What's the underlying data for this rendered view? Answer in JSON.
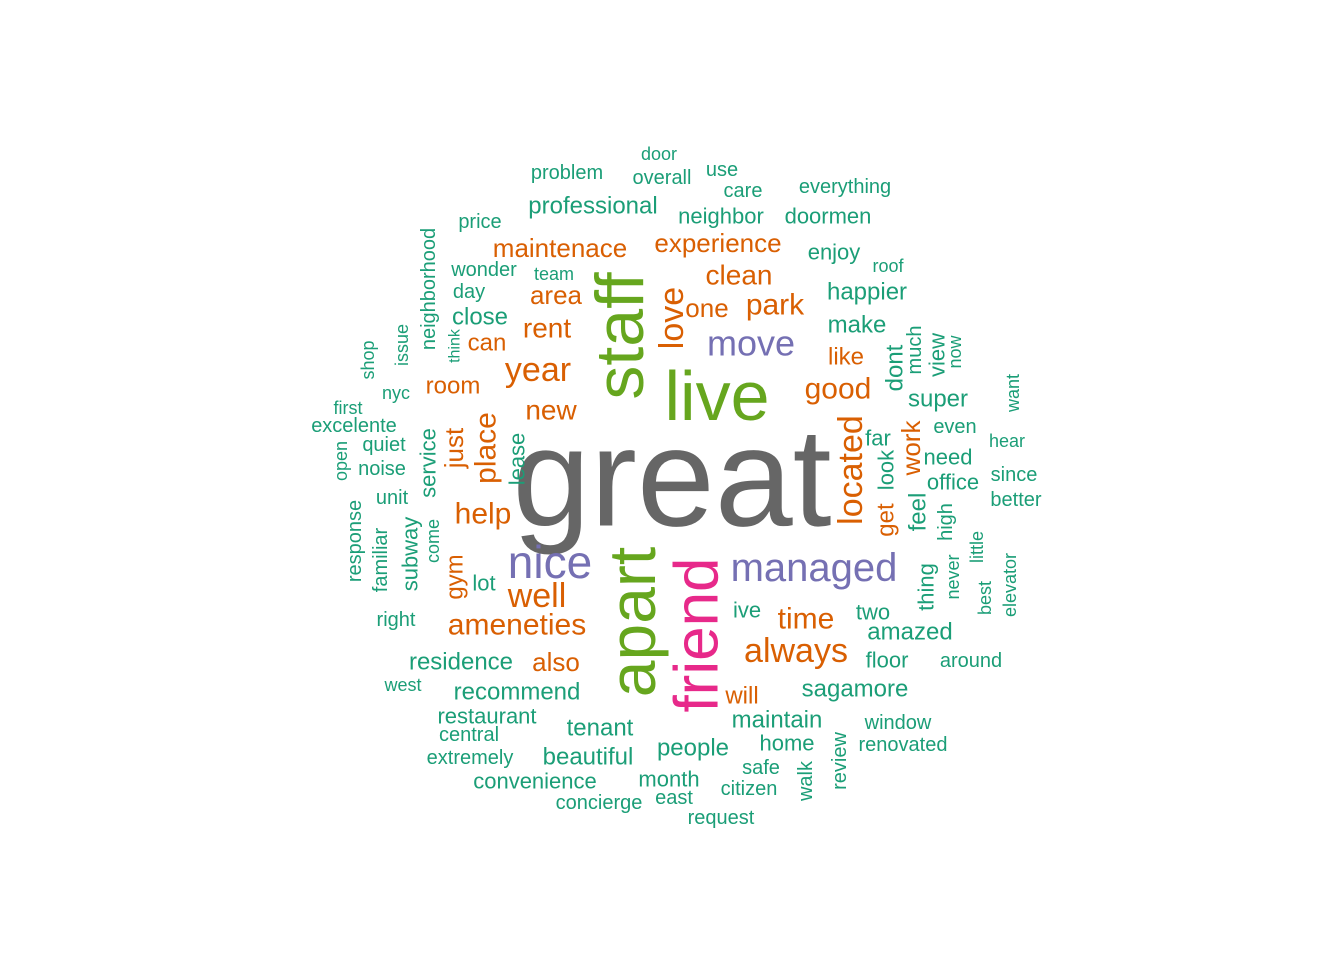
{
  "colors": {
    "teal": "#1B9E77",
    "orange": "#D95F02",
    "purple": "#7570B3",
    "pink": "#E7298A",
    "green": "#66A61E",
    "gray": "#666666"
  },
  "words": [
    {
      "text": "great",
      "color": "gray"
    },
    {
      "text": "live",
      "color": "green"
    },
    {
      "text": "staff",
      "color": "green"
    },
    {
      "text": "apart",
      "color": "green"
    },
    {
      "text": "friend",
      "color": "pink"
    },
    {
      "text": "nice",
      "color": "purple"
    },
    {
      "text": "managed",
      "color": "purple"
    },
    {
      "text": "move",
      "color": "purple"
    },
    {
      "text": "love",
      "color": "orange"
    },
    {
      "text": "year",
      "color": "orange"
    },
    {
      "text": "always",
      "color": "orange"
    },
    {
      "text": "well",
      "color": "orange"
    },
    {
      "text": "located",
      "color": "orange"
    },
    {
      "text": "ameneties",
      "color": "orange"
    },
    {
      "text": "place",
      "color": "orange"
    },
    {
      "text": "time",
      "color": "orange"
    },
    {
      "text": "help",
      "color": "orange"
    },
    {
      "text": "good",
      "color": "orange"
    },
    {
      "text": "park",
      "color": "orange"
    },
    {
      "text": "clean",
      "color": "orange"
    },
    {
      "text": "new",
      "color": "orange"
    },
    {
      "text": "experience",
      "color": "orange"
    },
    {
      "text": "maintenace",
      "color": "orange"
    },
    {
      "text": "rent",
      "color": "orange"
    },
    {
      "text": "area",
      "color": "orange"
    },
    {
      "text": "one",
      "color": "orange"
    },
    {
      "text": "also",
      "color": "orange"
    },
    {
      "text": "just",
      "color": "orange"
    },
    {
      "text": "work",
      "color": "orange"
    },
    {
      "text": "like",
      "color": "orange"
    },
    {
      "text": "can",
      "color": "orange"
    },
    {
      "text": "room",
      "color": "orange"
    },
    {
      "text": "gym",
      "color": "orange"
    },
    {
      "text": "get",
      "color": "orange"
    },
    {
      "text": "will",
      "color": "orange"
    },
    {
      "text": "sagamore",
      "color": "teal"
    },
    {
      "text": "recommend",
      "color": "teal"
    },
    {
      "text": "maintain",
      "color": "teal"
    },
    {
      "text": "amazed",
      "color": "teal"
    },
    {
      "text": "professional",
      "color": "teal"
    },
    {
      "text": "neighbor",
      "color": "teal"
    },
    {
      "text": "doormen",
      "color": "teal"
    },
    {
      "text": "happier",
      "color": "teal"
    },
    {
      "text": "make",
      "color": "teal"
    },
    {
      "text": "residence",
      "color": "teal"
    },
    {
      "text": "beautiful",
      "color": "teal"
    },
    {
      "text": "people",
      "color": "teal"
    },
    {
      "text": "tenant",
      "color": "teal"
    },
    {
      "text": "super",
      "color": "teal"
    },
    {
      "text": "enjoy",
      "color": "teal"
    },
    {
      "text": "home",
      "color": "teal"
    },
    {
      "text": "lot",
      "color": "teal"
    },
    {
      "text": "two",
      "color": "teal"
    },
    {
      "text": "ive",
      "color": "teal"
    },
    {
      "text": "floor",
      "color": "teal"
    },
    {
      "text": "close",
      "color": "teal"
    },
    {
      "text": "feel",
      "color": "teal"
    },
    {
      "text": "dont",
      "color": "teal"
    },
    {
      "text": "far",
      "color": "teal"
    },
    {
      "text": "look",
      "color": "teal"
    },
    {
      "text": "need",
      "color": "teal"
    },
    {
      "text": "office",
      "color": "teal"
    },
    {
      "text": "thing",
      "color": "teal"
    },
    {
      "text": "service",
      "color": "teal"
    },
    {
      "text": "subway",
      "color": "teal"
    },
    {
      "text": "lease",
      "color": "teal"
    },
    {
      "text": "much",
      "color": "teal"
    },
    {
      "text": "view",
      "color": "teal"
    },
    {
      "text": "high",
      "color": "teal"
    },
    {
      "text": "restaurant",
      "color": "teal"
    },
    {
      "text": "convenience",
      "color": "teal"
    },
    {
      "text": "concierge",
      "color": "teal"
    },
    {
      "text": "month",
      "color": "teal"
    },
    {
      "text": "citizen",
      "color": "teal"
    },
    {
      "text": "request",
      "color": "teal"
    },
    {
      "text": "safe",
      "color": "teal"
    },
    {
      "text": "east",
      "color": "teal"
    },
    {
      "text": "walk",
      "color": "teal"
    },
    {
      "text": "review",
      "color": "teal"
    },
    {
      "text": "window",
      "color": "teal"
    },
    {
      "text": "renovated",
      "color": "teal"
    },
    {
      "text": "around",
      "color": "teal"
    },
    {
      "text": "extremely",
      "color": "teal"
    },
    {
      "text": "central",
      "color": "teal"
    },
    {
      "text": "west",
      "color": "teal"
    },
    {
      "text": "right",
      "color": "teal"
    },
    {
      "text": "familiar",
      "color": "teal"
    },
    {
      "text": "response",
      "color": "teal"
    },
    {
      "text": "come",
      "color": "teal"
    },
    {
      "text": "unit",
      "color": "teal"
    },
    {
      "text": "noise",
      "color": "teal"
    },
    {
      "text": "quiet",
      "color": "teal"
    },
    {
      "text": "open",
      "color": "teal"
    },
    {
      "text": "excelente",
      "color": "teal"
    },
    {
      "text": "first",
      "color": "teal"
    },
    {
      "text": "nyc",
      "color": "teal"
    },
    {
      "text": "shop",
      "color": "teal"
    },
    {
      "text": "issue",
      "color": "teal"
    },
    {
      "text": "think",
      "color": "teal"
    },
    {
      "text": "neighborhood",
      "color": "teal"
    },
    {
      "text": "day",
      "color": "teal"
    },
    {
      "text": "wonder",
      "color": "teal"
    },
    {
      "text": "team",
      "color": "teal"
    },
    {
      "text": "price",
      "color": "teal"
    },
    {
      "text": "problem",
      "color": "teal"
    },
    {
      "text": "door",
      "color": "teal"
    },
    {
      "text": "overall",
      "color": "teal"
    },
    {
      "text": "use",
      "color": "teal"
    },
    {
      "text": "care",
      "color": "teal"
    },
    {
      "text": "everything",
      "color": "teal"
    },
    {
      "text": "roof",
      "color": "teal"
    },
    {
      "text": "now",
      "color": "teal"
    },
    {
      "text": "want",
      "color": "teal"
    },
    {
      "text": "even",
      "color": "teal"
    },
    {
      "text": "hear",
      "color": "teal"
    },
    {
      "text": "since",
      "color": "teal"
    },
    {
      "text": "better",
      "color": "teal"
    },
    {
      "text": "little",
      "color": "teal"
    },
    {
      "text": "never",
      "color": "teal"
    },
    {
      "text": "best",
      "color": "teal"
    },
    {
      "text": "elevator",
      "color": "teal"
    }
  ]
}
